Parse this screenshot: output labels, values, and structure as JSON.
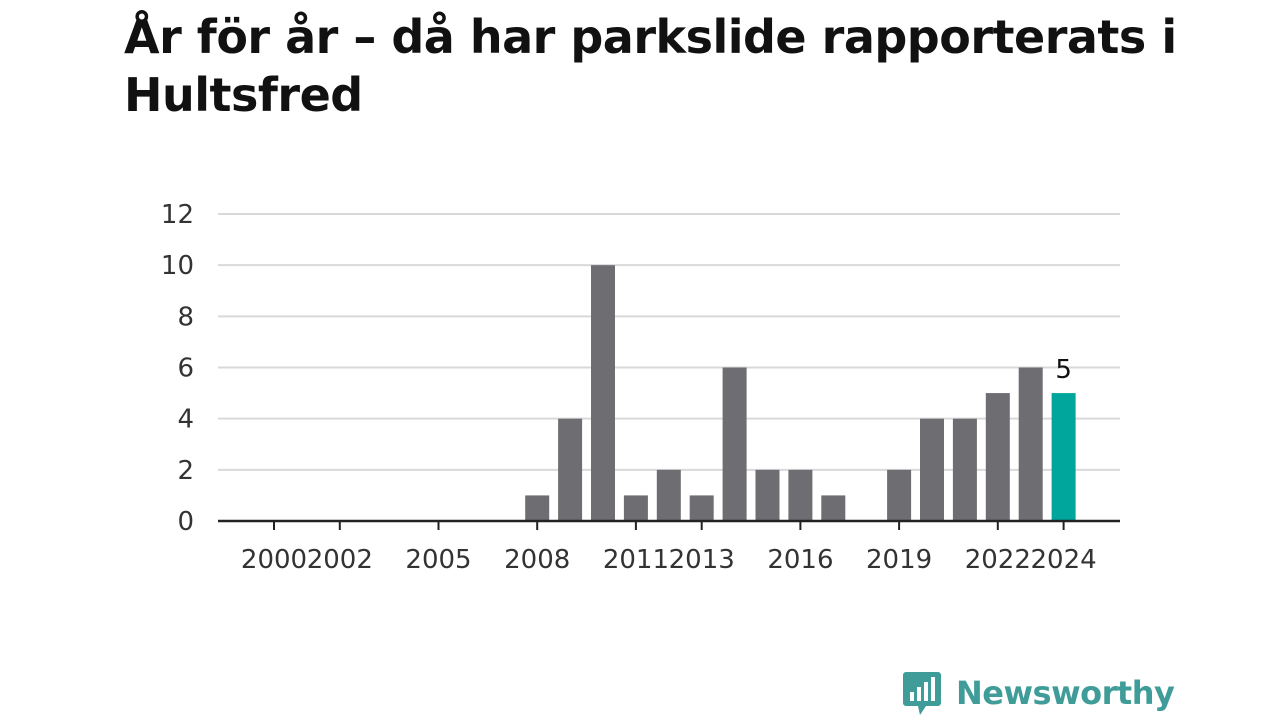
{
  "title": "År för år – då har parkslide rapporterats i Hultsfred",
  "brand": {
    "name": "Newsworthy",
    "logo_icon": "bar-chart-speech-bubble-icon"
  },
  "colors": {
    "bar": "#6e6d72",
    "highlight": "#00a69c",
    "grid": "#d9d9d9",
    "axis": "#222222",
    "brand": "#3f9c98"
  },
  "chart_data": {
    "type": "bar",
    "title": "År för år – då har parkslide rapporterats i Hultsfred",
    "xlabel": "",
    "ylabel": "",
    "categories": [
      "2000",
      "2001",
      "2002",
      "2003",
      "2004",
      "2005",
      "2006",
      "2007",
      "2008",
      "2009",
      "2010",
      "2011",
      "2012",
      "2013",
      "2014",
      "2015",
      "2016",
      "2017",
      "2018",
      "2019",
      "2020",
      "2021",
      "2022",
      "2023",
      "2024"
    ],
    "values": [
      0,
      0,
      0,
      0,
      0,
      0,
      0,
      0,
      1,
      4,
      10,
      1,
      2,
      1,
      6,
      2,
      2,
      1,
      0,
      2,
      4,
      4,
      5,
      6,
      5
    ],
    "x_tick_labels": [
      "2000",
      "2002",
      "2005",
      "2008",
      "2011",
      "2013",
      "2016",
      "2019",
      "2022",
      "2024"
    ],
    "y_ticks": [
      0,
      2,
      4,
      6,
      8,
      10,
      12
    ],
    "ylim": [
      0,
      12
    ],
    "grid": true,
    "highlight_category": "2024",
    "data_labels": [
      {
        "category": "2024",
        "text": "5"
      }
    ]
  }
}
